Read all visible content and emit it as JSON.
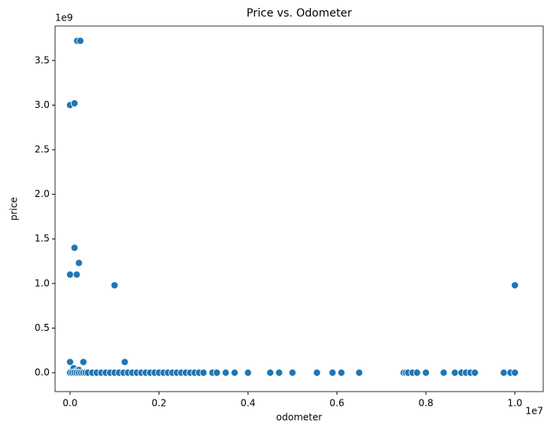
{
  "chart_data": {
    "type": "scatter",
    "title": "Price vs. Odometer",
    "x_label": "odometer",
    "y_label": "price",
    "x_offset_label": "1e7",
    "y_offset_label": "1e9",
    "color": "#1f77b4",
    "x": [
      0.016,
      0.023,
      0,
      0.01,
      0.01,
      0,
      0.015,
      0.02,
      0.1,
      1.0,
      0,
      0.003,
      0.03,
      0.123,
      0.005,
      0.012,
      0.008,
      0.015,
      0.02,
      0,
      0.005,
      0.01,
      0.015,
      0.02,
      0.025,
      0.03,
      0.035,
      0.04,
      0.05,
      0.06,
      0.07,
      0.08,
      0.09,
      0.1,
      0.11,
      0.12,
      0.13,
      0.14,
      0.15,
      0.16,
      0.17,
      0.18,
      0.19,
      0.2,
      0.21,
      0.22,
      0.23,
      0.24,
      0.25,
      0.26,
      0.27,
      0.28,
      0.29,
      0.3,
      0.32,
      0.33,
      0.35,
      0.37,
      0.4,
      0.45,
      0.47,
      0.5,
      0.555,
      0.59,
      0.61,
      0.65,
      0.75,
      0.755,
      0.76,
      0.77,
      0.78,
      0.8,
      0.84,
      0.865,
      0.88,
      0.89,
      0.9,
      0.91,
      0.975,
      0.99,
      1.0
    ],
    "values": [
      3.72,
      3.72,
      3.0,
      3.02,
      1.4,
      1.1,
      1.1,
      1.23,
      0.98,
      0.98,
      0.12,
      0.01,
      0.12,
      0.12,
      0.03,
      0.02,
      0.05,
      0.02,
      0.03,
      0,
      0,
      0,
      0,
      0,
      0,
      0,
      0,
      0,
      0,
      0,
      0,
      0,
      0,
      0,
      0,
      0,
      0,
      0,
      0,
      0,
      0,
      0,
      0,
      0,
      0,
      0,
      0,
      0,
      0,
      0,
      0,
      0,
      0,
      0,
      0,
      0,
      0,
      0,
      0,
      0,
      0,
      0,
      0,
      0,
      0,
      0,
      0,
      0,
      0,
      0,
      0,
      0,
      0,
      0,
      0,
      0,
      0,
      0,
      0,
      0,
      0
    ],
    "xlim": [
      -0.0336,
      1.0637
    ],
    "ylim": [
      -0.212,
      3.887
    ],
    "xticks": [
      {
        "value": 0,
        "label": "0.0"
      },
      0.2,
      0.4,
      0.6,
      0.8,
      {
        "value": 1,
        "label": "1.0"
      }
    ],
    "yticks": [
      {
        "value": 0,
        "label": "0.0"
      },
      0.5,
      {
        "value": 1,
        "label": "1.0"
      },
      1.5,
      {
        "value": 2,
        "label": "2.0"
      },
      2.5,
      {
        "value": 3,
        "label": "3.0"
      },
      3.5
    ],
    "grid": false
  }
}
